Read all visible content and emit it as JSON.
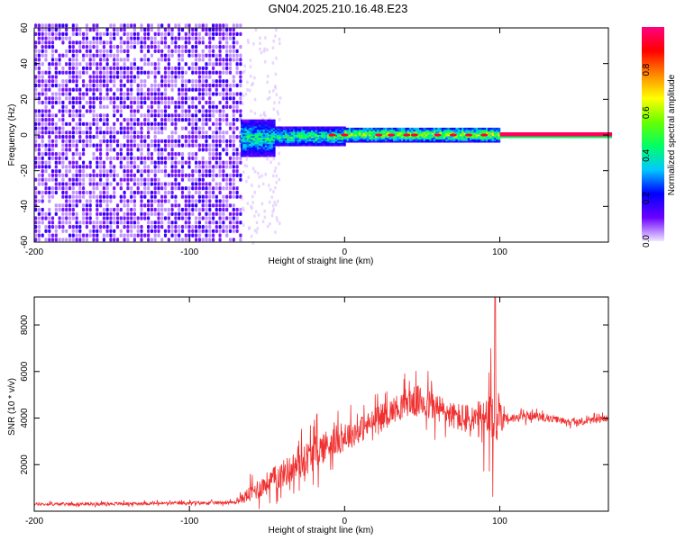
{
  "title": "GN04.2025.210.16.48.E23",
  "chart_data": [
    {
      "type": "heatmap",
      "xlabel": "Height of straight line (km)",
      "ylabel": "Frequency (Hz)",
      "xlim": [
        -200,
        170
      ],
      "ylim": [
        -60,
        60
      ],
      "x_ticks": [
        -200,
        -100,
        0,
        100
      ],
      "y_ticks": [
        -60,
        -40,
        -20,
        0,
        20,
        40,
        60
      ],
      "colorbar": {
        "label": "Normalized spectral amplitude",
        "range": [
          0,
          1
        ],
        "ticks": [
          "0.0",
          "0.2",
          "0.4",
          "0.6",
          "0.8"
        ],
        "colors": [
          "#f0e6ff",
          "#6a00ff",
          "#0000ff",
          "#00c8ff",
          "#00ff66",
          "#66ff00",
          "#ffff00",
          "#ff8800",
          "#ff0000",
          "#ff0080"
        ]
      },
      "regions": [
        {
          "x_range": [
            -200,
            -67
          ],
          "f_range": [
            -60,
            60
          ],
          "amplitude": 0.05,
          "texture": "noise"
        },
        {
          "x_range": [
            -67,
            -45
          ],
          "f_range": [
            -12,
            8
          ],
          "amplitude": 0.35
        },
        {
          "x_range": [
            -45,
            0
          ],
          "f_range": [
            -6,
            4
          ],
          "amplitude": 0.4
        },
        {
          "x_range": [
            0,
            100
          ],
          "f_range": [
            -4,
            4
          ],
          "amplitude": 0.5
        },
        {
          "x_range": [
            100,
            170
          ],
          "f_range": [
            -1.5,
            1.5
          ],
          "amplitude": 0.95
        }
      ]
    },
    {
      "type": "line",
      "xlabel": "Height of straight line (km)",
      "ylabel": "SNR (10 * v/v)",
      "xlim": [
        -200,
        170
      ],
      "ylim": [
        0,
        9200
      ],
      "x_ticks": [
        -200,
        -100,
        0,
        100
      ],
      "y_ticks": [
        2000,
        4000,
        6000,
        8000
      ],
      "line_color": "#f03030",
      "series_envelope": {
        "x": [
          -200,
          -150,
          -100,
          -70,
          -60,
          -50,
          -40,
          -30,
          -20,
          -10,
          0,
          10,
          20,
          30,
          40,
          50,
          60,
          70,
          80,
          90,
          95,
          100,
          105,
          110,
          120,
          130,
          140,
          150,
          160,
          170
        ],
        "mean": [
          300,
          320,
          350,
          380,
          800,
          1200,
          1600,
          2000,
          2500,
          2900,
          3200,
          3500,
          3900,
          4300,
          4700,
          4700,
          4400,
          4100,
          3900,
          3800,
          3700,
          4200,
          4000,
          4000,
          4100,
          4000,
          3900,
          3800,
          3900,
          4000
        ],
        "spread": [
          150,
          150,
          150,
          150,
          900,
          1100,
          1300,
          1500,
          1700,
          1500,
          1400,
          1300,
          1200,
          1200,
          1400,
          1600,
          1500,
          1300,
          1600,
          2200,
          3600,
          2000,
          500,
          400,
          400,
          350,
          300,
          300,
          300,
          300
        ]
      },
      "peak": {
        "x": 97,
        "y": 9200
      }
    }
  ]
}
